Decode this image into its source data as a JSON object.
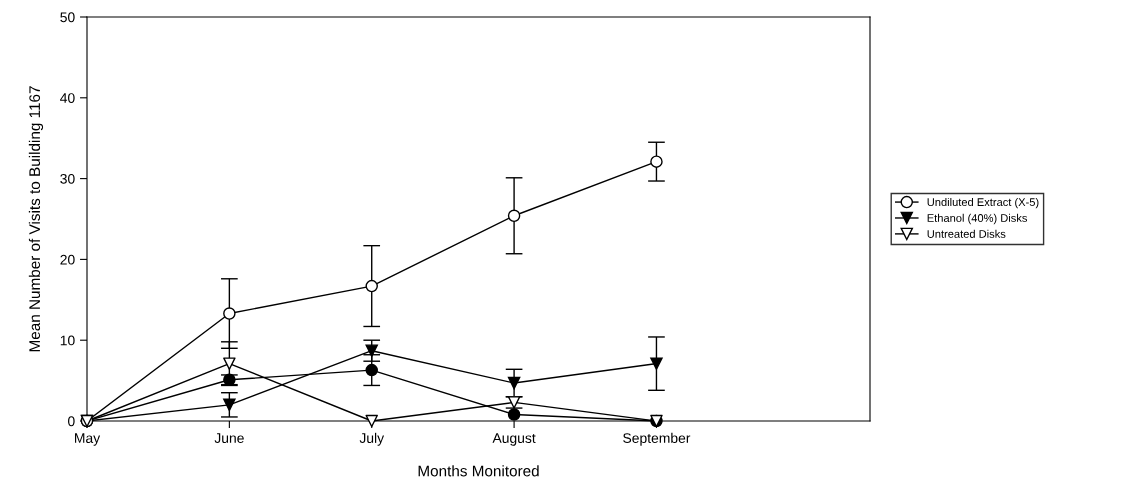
{
  "chart_data": {
    "type": "line",
    "xlabel": "Months Monitored",
    "ylabel": "Mean Number of Visits to Building 1167",
    "categories": [
      "May",
      "June",
      "July",
      "August",
      "September"
    ],
    "ylim": [
      0,
      50
    ],
    "yticks": [
      0,
      10,
      20,
      30,
      40,
      50
    ],
    "grid": false,
    "legend": "right",
    "series": [
      {
        "color": "#000000",
        "marker": "circle",
        "values": [
          0,
          5.1,
          6.3,
          0.8,
          0
        ],
        "errors": [
          null,
          0.6,
          1.9,
          null,
          null
        ]
      },
      {
        "name": "Undiluted Extract (X-5)",
        "color": "#000000",
        "marker": "circle",
        "colors": [
          "#ffffff",
          "#ffffff",
          "#ffffff",
          "#ffffff",
          "#ffffff"
        ],
        "values": [
          0,
          13.3,
          16.7,
          25.4,
          32.1
        ],
        "errors": [
          null,
          4.3,
          5.0,
          4.7,
          2.4
        ]
      },
      {
        "name": "Ethanol (40%) Disks",
        "color": "#000000",
        "marker": "triangle",
        "values": [
          0,
          2.0,
          8.7,
          4.7,
          7.1
        ],
        "errors": [
          null,
          1.5,
          1.3,
          1.7,
          3.3
        ]
      },
      {
        "name": "Untreated Disks",
        "color": "#000000",
        "marker": "triangle",
        "colors": [
          "#ffffff",
          "#ffffff",
          "#ffffff",
          "#ffffff",
          "#ffffff"
        ],
        "values": [
          0,
          7.1,
          0,
          2.3,
          0
        ],
        "errors": [
          null,
          2.7,
          null,
          0.7,
          null
        ]
      }
    ]
  }
}
